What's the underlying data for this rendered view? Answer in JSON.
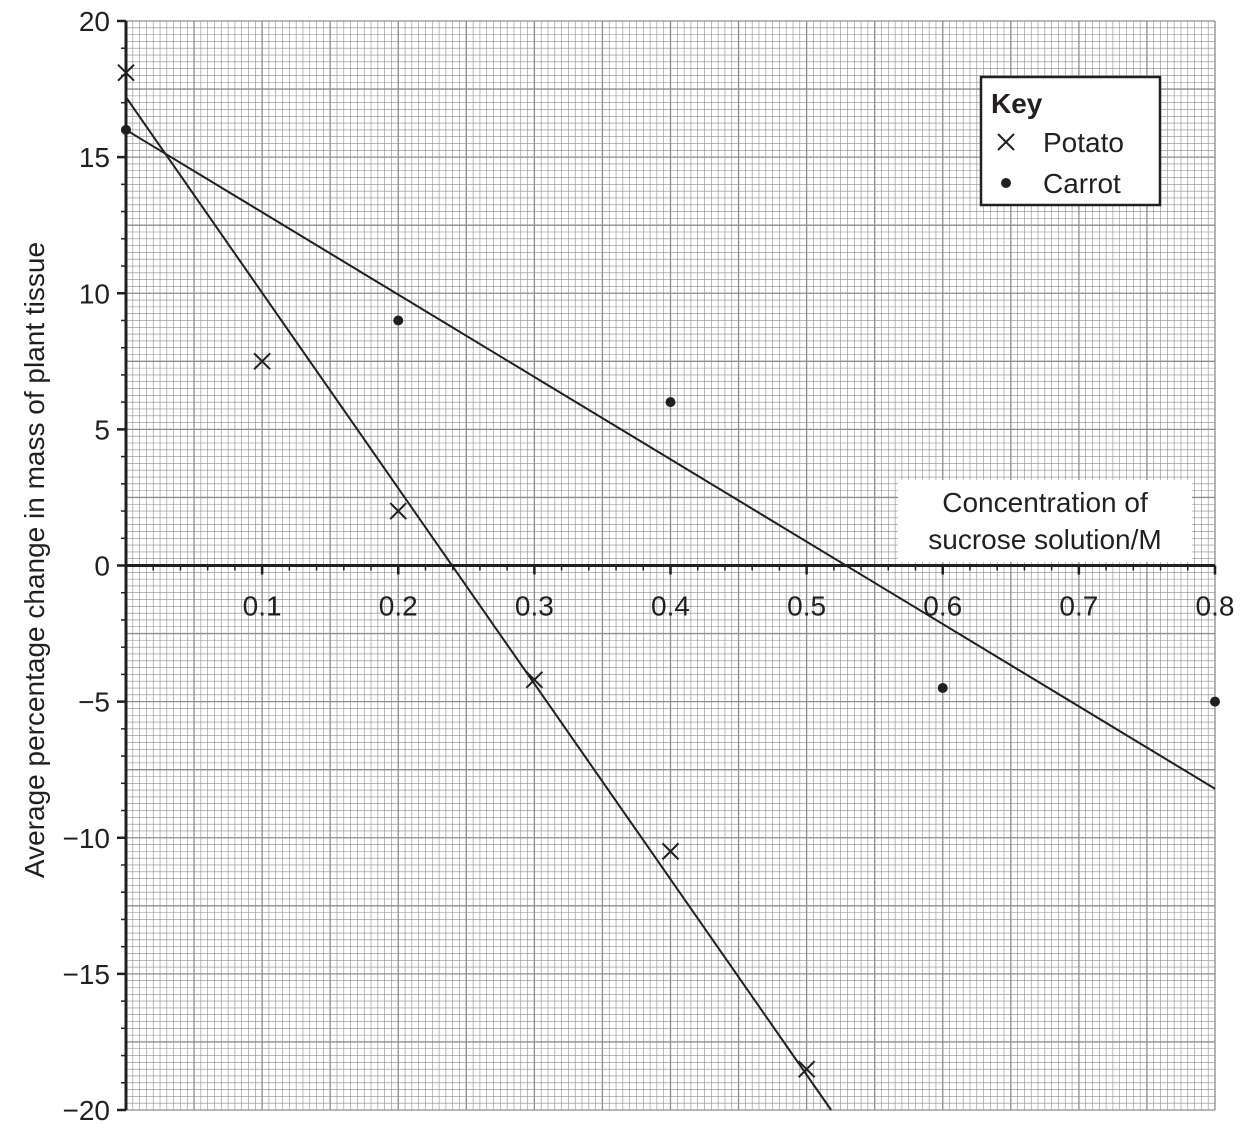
{
  "chart_data": {
    "type": "scatter",
    "xlabel": "Concentration of sucrose solution/M",
    "xlabel_lines": [
      "Concentration of",
      "sucrose solution/M"
    ],
    "ylabel": "Average percentage change in mass of plant tissue",
    "xlim": [
      0,
      0.8
    ],
    "ylim": [
      -20,
      20
    ],
    "x_ticks": [
      0.1,
      0.2,
      0.3,
      0.4,
      0.5,
      0.6,
      0.7,
      0.8
    ],
    "x_tick_labels": [
      "0.1",
      "0.2",
      "0.3",
      "0.4",
      "0.5",
      "0.6",
      "0.7",
      "0.8"
    ],
    "y_ticks": [
      20,
      15,
      10,
      5,
      0,
      -5,
      -10,
      -15,
      -20
    ],
    "y_tick_labels": [
      "20",
      "15",
      "10",
      "5",
      "0",
      "−5",
      "−10",
      "−15",
      "−20"
    ],
    "grid": true,
    "legend_position": "top-right",
    "legend_title": "Key",
    "series": [
      {
        "name": "Potato",
        "marker": "cross",
        "points": [
          {
            "x": 0.0,
            "y": 18.1
          },
          {
            "x": 0.1,
            "y": 7.5
          },
          {
            "x": 0.2,
            "y": 2.0
          },
          {
            "x": 0.3,
            "y": -4.2
          },
          {
            "x": 0.4,
            "y": -10.5
          },
          {
            "x": 0.5,
            "y": -18.5
          }
        ],
        "line_of_best_fit": {
          "from": [
            0.0,
            17.2
          ],
          "to": [
            0.518,
            -20.0
          ]
        }
      },
      {
        "name": "Carrot",
        "marker": "dot",
        "points": [
          {
            "x": 0.0,
            "y": 16.0
          },
          {
            "x": 0.2,
            "y": 9.0
          },
          {
            "x": 0.4,
            "y": 6.0
          },
          {
            "x": 0.6,
            "y": -4.5
          },
          {
            "x": 0.8,
            "y": -5.0
          }
        ],
        "line_of_best_fit": {
          "from": [
            0.0,
            16.0
          ],
          "to": [
            0.8,
            -8.2
          ]
        }
      }
    ],
    "colors": {
      "ink": "#231f20",
      "grid": "#8f8c8c",
      "background": "#ffffff"
    }
  }
}
